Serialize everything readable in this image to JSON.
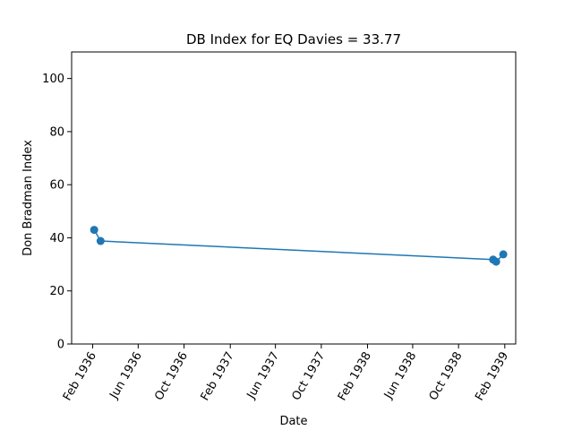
{
  "chart_data": {
    "type": "line",
    "title": "DB Index for EQ Davies = 33.77",
    "xlabel": "Date",
    "ylabel": "Don Bradman Index",
    "ylim": [
      0,
      110
    ],
    "xlim": [
      "1935-12-07",
      "1939-03-02"
    ],
    "y_ticks": [
      0,
      20,
      40,
      60,
      80,
      100
    ],
    "x_ticks": [
      {
        "date": "1936-02-01",
        "label": "Feb 1936"
      },
      {
        "date": "1936-06-01",
        "label": "Jun 1936"
      },
      {
        "date": "1936-10-01",
        "label": "Oct 1936"
      },
      {
        "date": "1937-02-01",
        "label": "Feb 1937"
      },
      {
        "date": "1937-06-01",
        "label": "Jun 1937"
      },
      {
        "date": "1937-10-01",
        "label": "Oct 1937"
      },
      {
        "date": "1938-02-01",
        "label": "Feb 1938"
      },
      {
        "date": "1938-06-01",
        "label": "Jun 1938"
      },
      {
        "date": "1938-10-01",
        "label": "Oct 1938"
      },
      {
        "date": "1939-02-01",
        "label": "Feb 1939"
      }
    ],
    "series": [
      {
        "color": "#1f77b4",
        "points": [
          {
            "x": "1936-02-05",
            "y": 43.0
          },
          {
            "x": "1936-02-22",
            "y": 38.8
          },
          {
            "x": "1939-01-01",
            "y": 31.8
          },
          {
            "x": "1939-01-09",
            "y": 31.0
          },
          {
            "x": "1939-01-28",
            "y": 33.77
          }
        ]
      }
    ],
    "grid": false,
    "legend": "none"
  }
}
